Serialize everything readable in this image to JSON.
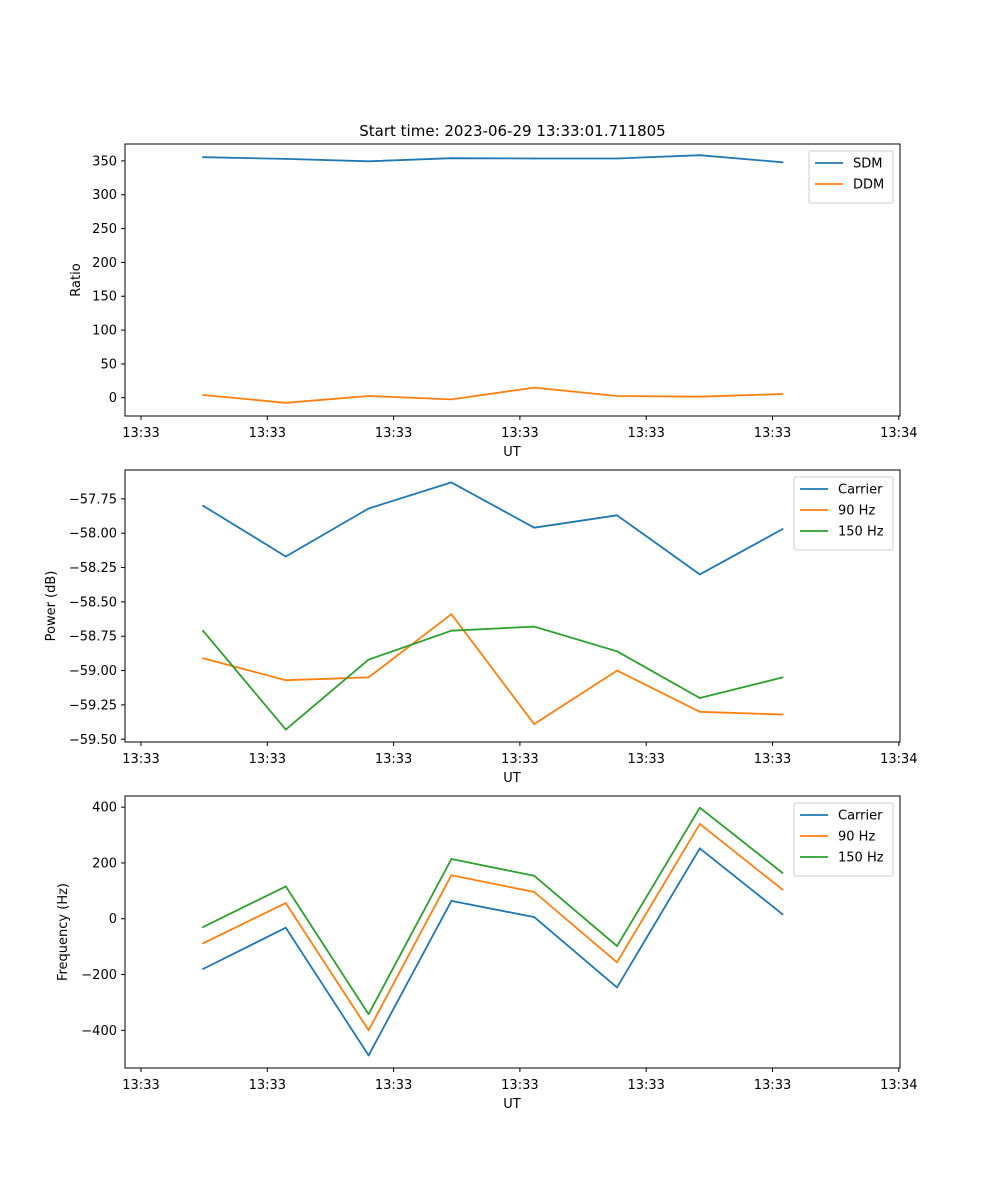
{
  "figure": {
    "title": "Start time: 2023-06-29 13:33:01.711805"
  },
  "colors": {
    "blue": "#1f77b4",
    "orange": "#ff7f0e",
    "green": "#2ca02c"
  },
  "chart_data": [
    {
      "type": "line",
      "x_tick_labels": [
        "13:33",
        "13:33",
        "13:33",
        "13:33",
        "13:33",
        "13:33",
        "13:34"
      ],
      "xlabel": "UT",
      "ylabel": "Ratio",
      "ylim": [
        -27,
        375
      ],
      "yticks": [
        "0",
        "50",
        "100",
        "150",
        "200",
        "250",
        "300",
        "350"
      ],
      "legend": "top-right",
      "grid": false,
      "series": [
        {
          "name": "SDM",
          "color": "blue",
          "values": [
            355.5,
            353,
            349.5,
            354,
            353.5,
            353.5,
            358.5,
            348
          ]
        },
        {
          "name": "DDM",
          "color": "orange",
          "values": [
            4,
            -7.5,
            2.5,
            -2.5,
            15,
            2.5,
            1.5,
            5.5
          ]
        }
      ]
    },
    {
      "type": "line",
      "x_tick_labels": [
        "13:33",
        "13:33",
        "13:33",
        "13:33",
        "13:33",
        "13:33",
        "13:34"
      ],
      "xlabel": "UT",
      "ylabel": "Power (dB)",
      "ylim": [
        -59.52,
        -57.54
      ],
      "yticks": [
        "−57.75",
        "−58.00",
        "−58.25",
        "−58.50",
        "−58.75",
        "−59.00",
        "−59.25",
        "−59.50"
      ],
      "legend": "top-right",
      "grid": false,
      "series": [
        {
          "name": "Carrier",
          "color": "blue",
          "values": [
            -57.8,
            -58.17,
            -57.82,
            -57.63,
            -57.96,
            -57.87,
            -58.3,
            -57.97
          ]
        },
        {
          "name": "90 Hz",
          "color": "orange",
          "values": [
            -58.91,
            -59.07,
            -59.05,
            -58.59,
            -59.39,
            -59.0,
            -59.3,
            -59.32
          ]
        },
        {
          "name": "150 Hz",
          "color": "green",
          "values": [
            -58.71,
            -59.43,
            -58.92,
            -58.71,
            -58.68,
            -58.86,
            -59.2,
            -59.05
          ]
        }
      ]
    },
    {
      "type": "line",
      "x_tick_labels": [
        "13:33",
        "13:33",
        "13:33",
        "13:33",
        "13:33",
        "13:33",
        "13:34"
      ],
      "xlabel": "UT",
      "ylabel": "Frequency (Hz)",
      "ylim": [
        -535,
        440
      ],
      "yticks": [
        "400",
        "200",
        "0",
        "−200",
        "−400"
      ],
      "legend": "top-right",
      "grid": false,
      "series": [
        {
          "name": "Carrier",
          "color": "blue",
          "values": [
            -180,
            -32,
            -490,
            64,
            6,
            -246,
            252,
            16
          ]
        },
        {
          "name": "90 Hz",
          "color": "orange",
          "values": [
            -88,
            56,
            -400,
            156,
            96,
            -156,
            340,
            104
          ]
        },
        {
          "name": "150 Hz",
          "color": "green",
          "values": [
            -30,
            116,
            -342,
            214,
            154,
            -98,
            398,
            164
          ]
        }
      ]
    }
  ]
}
